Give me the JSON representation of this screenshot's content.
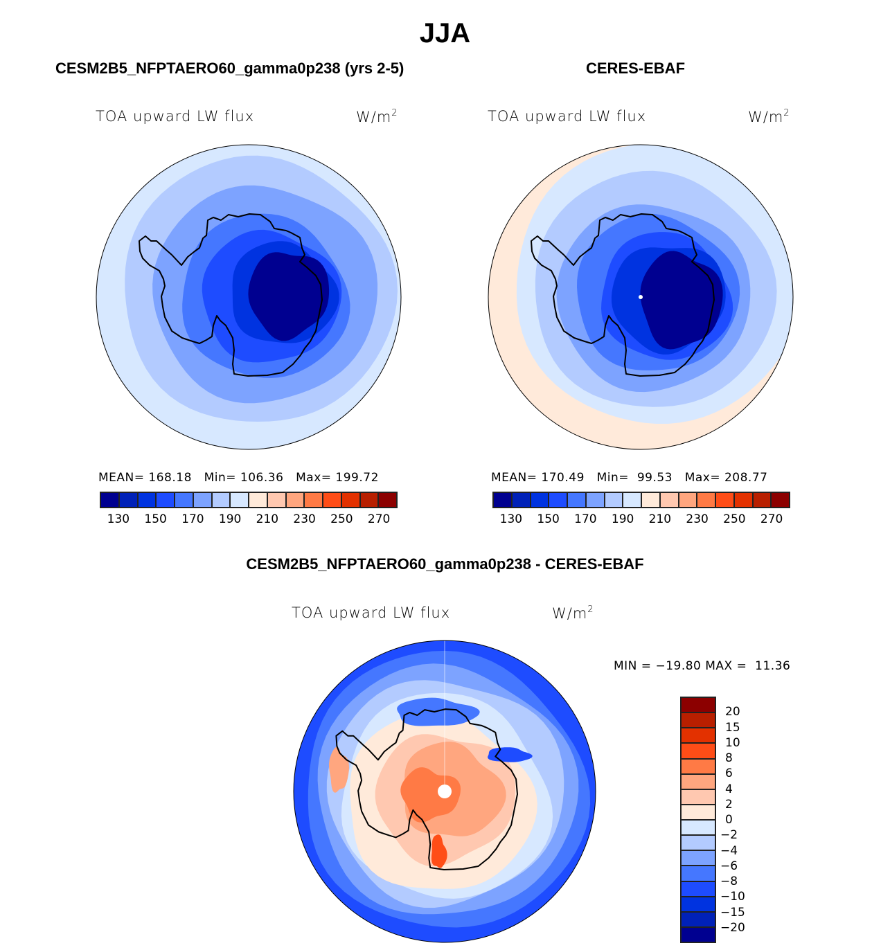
{
  "figure": {
    "title": "JJA"
  },
  "panels": [
    {
      "title": "CESM2B5_NFPTAERO60_gamma0p238 (yrs 2-5)",
      "variable": "TOA upward LW flux",
      "units_base": "W/m",
      "units_exp": "2",
      "stats": "MEAN= 168.18   Min= 106.36   Max= 199.72",
      "mean": 168.18,
      "min": 106.36,
      "max": 199.72
    },
    {
      "title": "CERES-EBAF",
      "variable": "TOA upward LW flux",
      "units_base": "W/m",
      "units_exp": "2",
      "stats": "MEAN= 170.49   Min=  99.53   Max= 208.77",
      "mean": 170.49,
      "min": 99.53,
      "max": 208.77
    }
  ],
  "difference": {
    "title": "CESM2B5_NFPTAERO60_gamma0p238 - CERES-EBAF",
    "variable": "TOA upward LW flux",
    "units_base": "W/m",
    "units_exp": "2",
    "stats": "MIN = −19.80 MAX =  11.36",
    "min": -19.8,
    "max": 11.36
  },
  "chart_data": [
    {
      "type": "heatmap",
      "projection": "south-polar-stereographic",
      "title": "CESM2B5_NFPTAERO60_gamma0p238 (yrs 2-5)",
      "variable": "TOA upward LW flux",
      "units": "W/m^2",
      "colorbar": {
        "orientation": "horizontal",
        "ticks": [
          "130",
          "150",
          "170",
          "190",
          "210",
          "230",
          "250",
          "270"
        ],
        "levels": [
          120,
          130,
          140,
          150,
          160,
          170,
          180,
          190,
          200,
          210,
          220,
          230,
          240,
          250,
          260,
          270
        ],
        "colors": [
          "#000090",
          "#0021b8",
          "#0033e0",
          "#1e4cff",
          "#4577ff",
          "#7da3ff",
          "#b3cbff",
          "#d7e8ff",
          "#ffeada",
          "#ffc8b0",
          "#ffa67f",
          "#ff7a45",
          "#ff4d17",
          "#e33100",
          "#b81f00",
          "#8c0000"
        ]
      },
      "summary": {
        "mean": 168.18,
        "min": 106.36,
        "max": 199.72
      },
      "description": "Flux lowest (<130) over East Antarctic plateau, rising concentrically to ~190-200 toward mid-latitude edge"
    },
    {
      "type": "heatmap",
      "projection": "south-polar-stereographic",
      "title": "CERES-EBAF",
      "variable": "TOA upward LW flux",
      "units": "W/m^2",
      "colorbar": {
        "orientation": "horizontal",
        "ticks": [
          "130",
          "150",
          "170",
          "190",
          "210",
          "230",
          "250",
          "270"
        ],
        "levels": [
          120,
          130,
          140,
          150,
          160,
          170,
          180,
          190,
          200,
          210,
          220,
          230,
          240,
          250,
          260,
          270
        ],
        "colors": [
          "#000090",
          "#0021b8",
          "#0033e0",
          "#1e4cff",
          "#4577ff",
          "#7da3ff",
          "#b3cbff",
          "#d7e8ff",
          "#ffeada",
          "#ffc8b0",
          "#ffa67f",
          "#ff7a45",
          "#ff4d17",
          "#e33100",
          "#b81f00",
          "#8c0000"
        ]
      },
      "summary": {
        "mean": 170.49,
        "min": 99.53,
        "max": 208.77
      },
      "description": "Lowest flux over Antarctic interior, 200-210 band at outer left/bottom edge"
    },
    {
      "type": "heatmap",
      "projection": "south-polar-stereographic",
      "title": "CESM2B5_NFPTAERO60_gamma0p238 - CERES-EBAF",
      "variable": "TOA upward LW flux",
      "units": "W/m^2",
      "colorbar": {
        "orientation": "vertical",
        "ticks": [
          "20",
          "15",
          "10",
          "8",
          "6",
          "4",
          "2",
          "0",
          "−2",
          "−4",
          "−6",
          "−8",
          "−10",
          "−15",
          "−20"
        ],
        "levels": [
          -20,
          -15,
          -10,
          -8,
          -6,
          -4,
          -2,
          0,
          2,
          4,
          6,
          8,
          10,
          15,
          20
        ],
        "colors_top_to_bottom": [
          "#8c0000",
          "#b81f00",
          "#e33100",
          "#ff4d17",
          "#ff7a45",
          "#ffa67f",
          "#ffc8b0",
          "#ffeada",
          "#d7e8ff",
          "#b3cbff",
          "#7da3ff",
          "#4577ff",
          "#1e4cff",
          "#0033e0",
          "#0021b8",
          "#000090"
        ]
      },
      "summary": {
        "min": -19.8,
        "max": 11.36
      },
      "description": "Positive bias (0-10) over Antarctic continent and peninsula, negative bias (-2 to -15) over surrounding ocean"
    }
  ]
}
